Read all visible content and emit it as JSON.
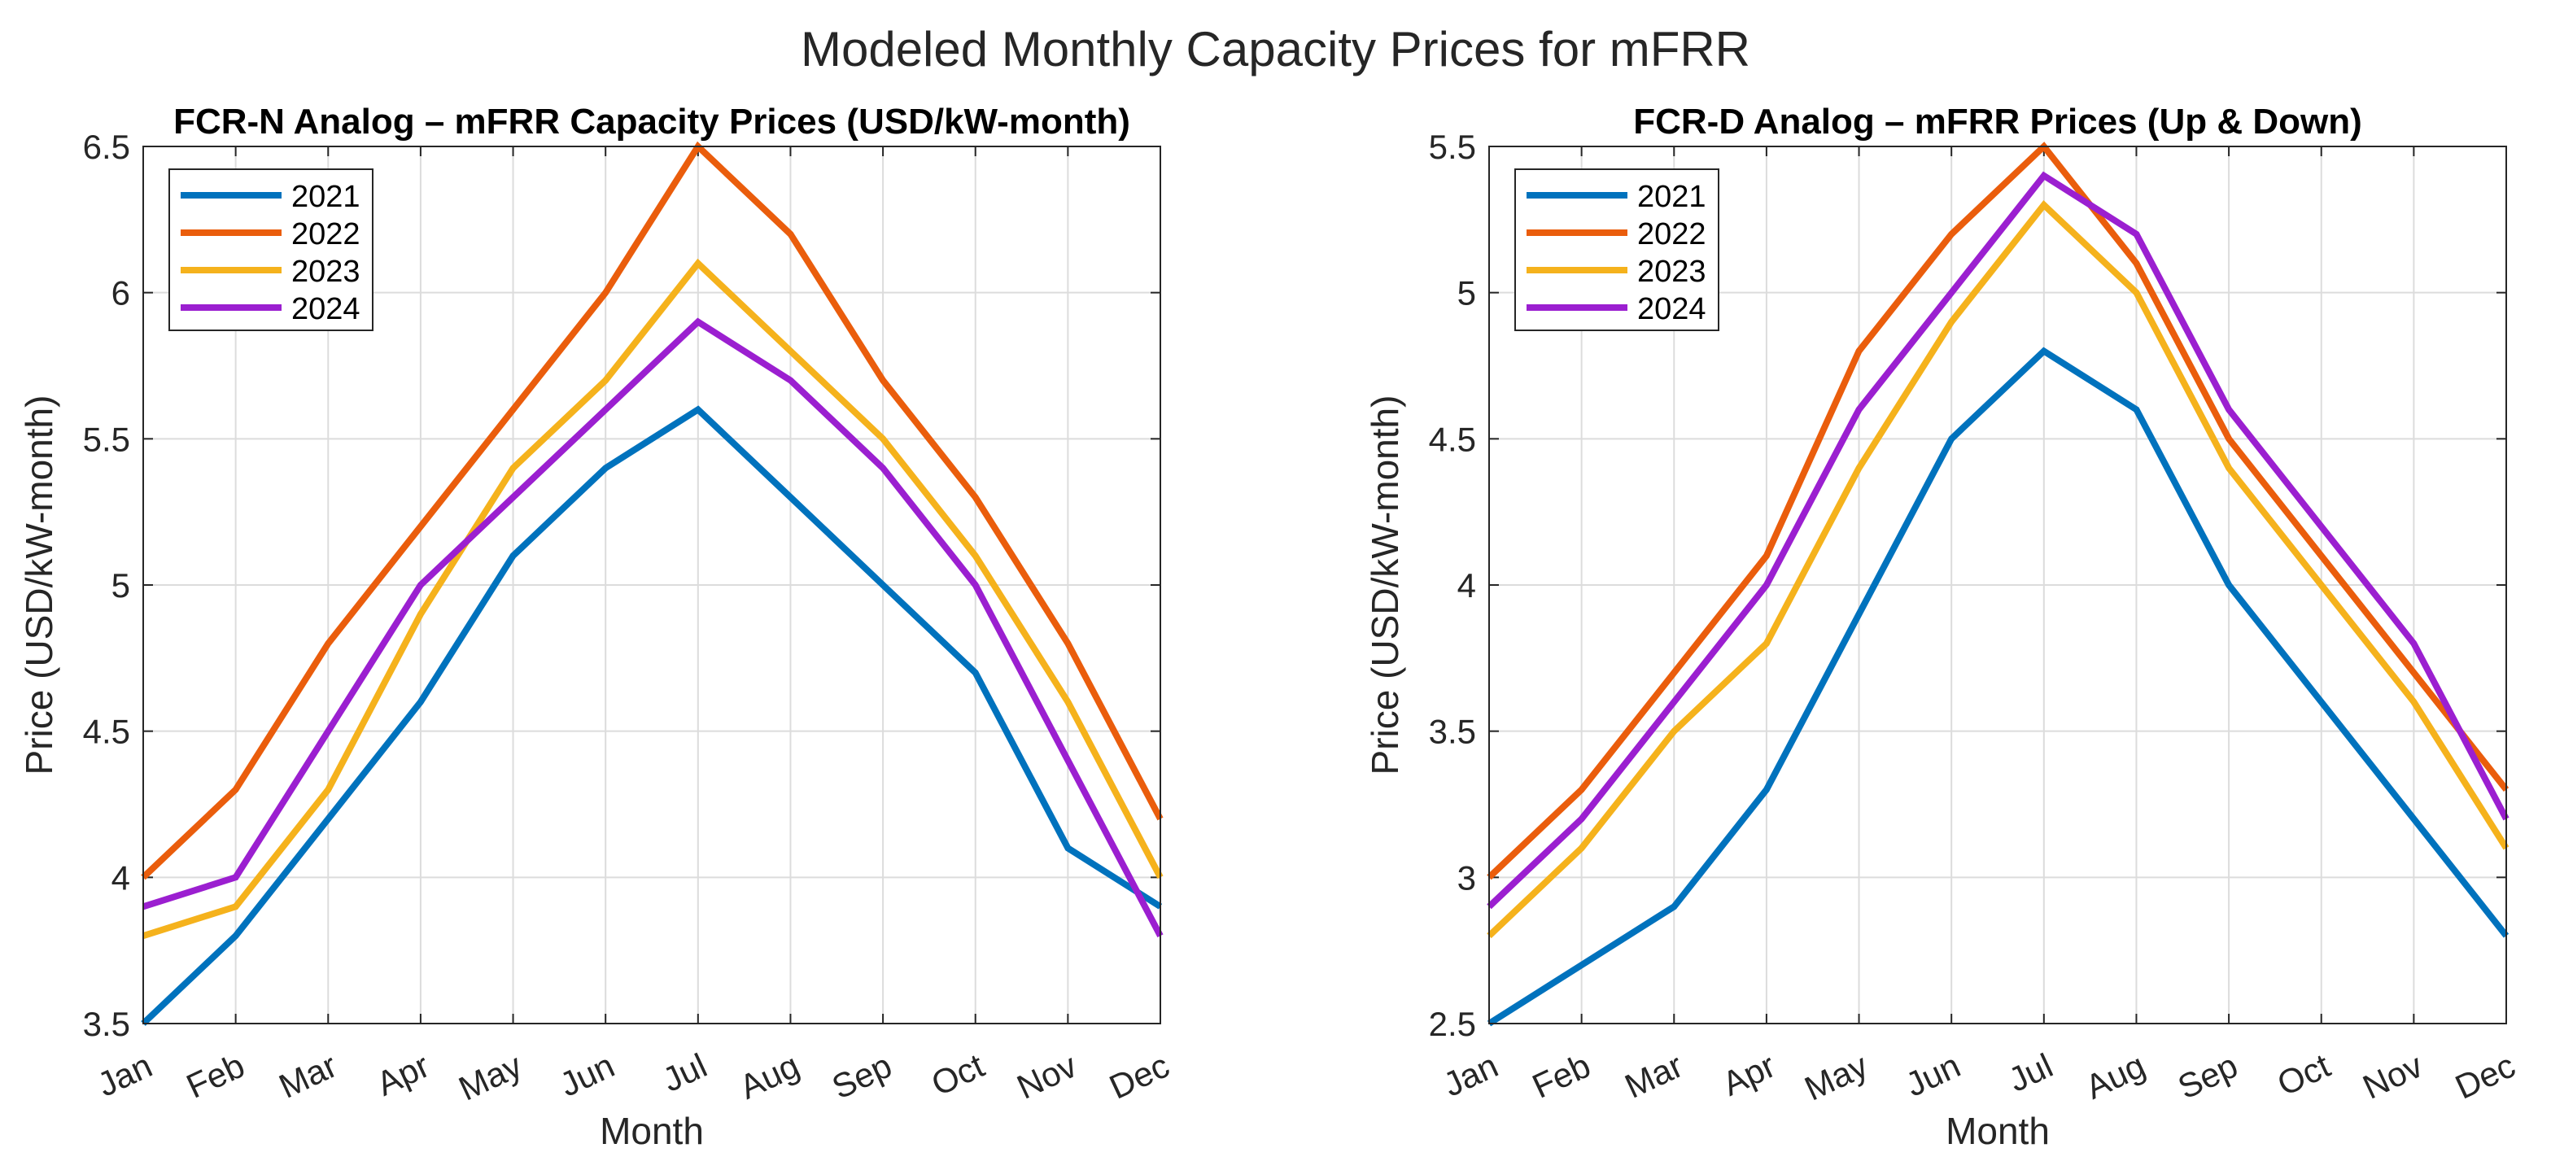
{
  "figure_title": "Modeled Monthly Capacity Prices for mFRR",
  "chart_data": [
    {
      "type": "line",
      "title": "FCR-N Analog – mFRR Capacity Prices (USD/kW-month)",
      "xlabel": "Month",
      "ylabel": "Price (USD/kW-month)",
      "categories": [
        "Jan",
        "Feb",
        "Mar",
        "Apr",
        "May",
        "Jun",
        "Jul",
        "Aug",
        "Sep",
        "Oct",
        "Nov",
        "Dec"
      ],
      "ylim": [
        3.5,
        6.5
      ],
      "yticks": [
        3.5,
        4,
        4.5,
        5,
        5.5,
        6,
        6.5
      ],
      "ytick_labels": [
        "3.5",
        "4",
        "4.5",
        "5",
        "5.5",
        "6",
        "6.5"
      ],
      "grid": true,
      "legend_position": "top-left",
      "series": [
        {
          "name": "2021",
          "color": "#0072BD",
          "values": [
            3.5,
            3.8,
            4.2,
            4.6,
            5.1,
            5.4,
            5.6,
            5.3,
            5.0,
            4.7,
            4.1,
            3.9
          ]
        },
        {
          "name": "2022",
          "color": "#EA5D0C",
          "values": [
            4.0,
            4.3,
            4.8,
            5.2,
            5.6,
            6.0,
            6.5,
            6.2,
            5.7,
            5.3,
            4.8,
            4.2
          ]
        },
        {
          "name": "2023",
          "color": "#F5B21C",
          "values": [
            3.8,
            3.9,
            4.3,
            4.9,
            5.4,
            5.7,
            6.1,
            5.8,
            5.5,
            5.1,
            4.6,
            4.0
          ]
        },
        {
          "name": "2024",
          "color": "#9B1FD0",
          "values": [
            3.9,
            4.0,
            4.5,
            5.0,
            5.3,
            5.6,
            5.9,
            5.7,
            5.4,
            5.0,
            4.4,
            3.8
          ]
        }
      ]
    },
    {
      "type": "line",
      "title": "FCR-D Analog – mFRR Prices (Up & Down)",
      "xlabel": "Month",
      "ylabel": "Price (USD/kW-month)",
      "categories": [
        "Jan",
        "Feb",
        "Mar",
        "Apr",
        "May",
        "Jun",
        "Jul",
        "Aug",
        "Sep",
        "Oct",
        "Nov",
        "Dec"
      ],
      "ylim": [
        2.5,
        5.5
      ],
      "yticks": [
        2.5,
        3,
        3.5,
        4,
        4.5,
        5,
        5.5
      ],
      "ytick_labels": [
        "2.5",
        "3",
        "3.5",
        "4",
        "4.5",
        "5",
        "5.5"
      ],
      "grid": true,
      "legend_position": "top-left",
      "series": [
        {
          "name": "2021",
          "color": "#0072BD",
          "values": [
            2.5,
            2.7,
            2.9,
            3.3,
            3.9,
            4.5,
            4.8,
            4.6,
            4.0,
            3.6,
            3.2,
            2.8
          ]
        },
        {
          "name": "2022",
          "color": "#EA5D0C",
          "values": [
            3.0,
            3.3,
            3.7,
            4.1,
            4.8,
            5.2,
            5.5,
            5.1,
            4.5,
            4.1,
            3.7,
            3.3
          ]
        },
        {
          "name": "2023",
          "color": "#F5B21C",
          "values": [
            2.8,
            3.1,
            3.5,
            3.8,
            4.4,
            4.9,
            5.3,
            5.0,
            4.4,
            4.0,
            3.6,
            3.1
          ]
        },
        {
          "name": "2024",
          "color": "#9B1FD0",
          "values": [
            2.9,
            3.2,
            3.6,
            4.0,
            4.6,
            5.0,
            5.4,
            5.2,
            4.6,
            4.2,
            3.8,
            3.2
          ]
        }
      ]
    }
  ]
}
